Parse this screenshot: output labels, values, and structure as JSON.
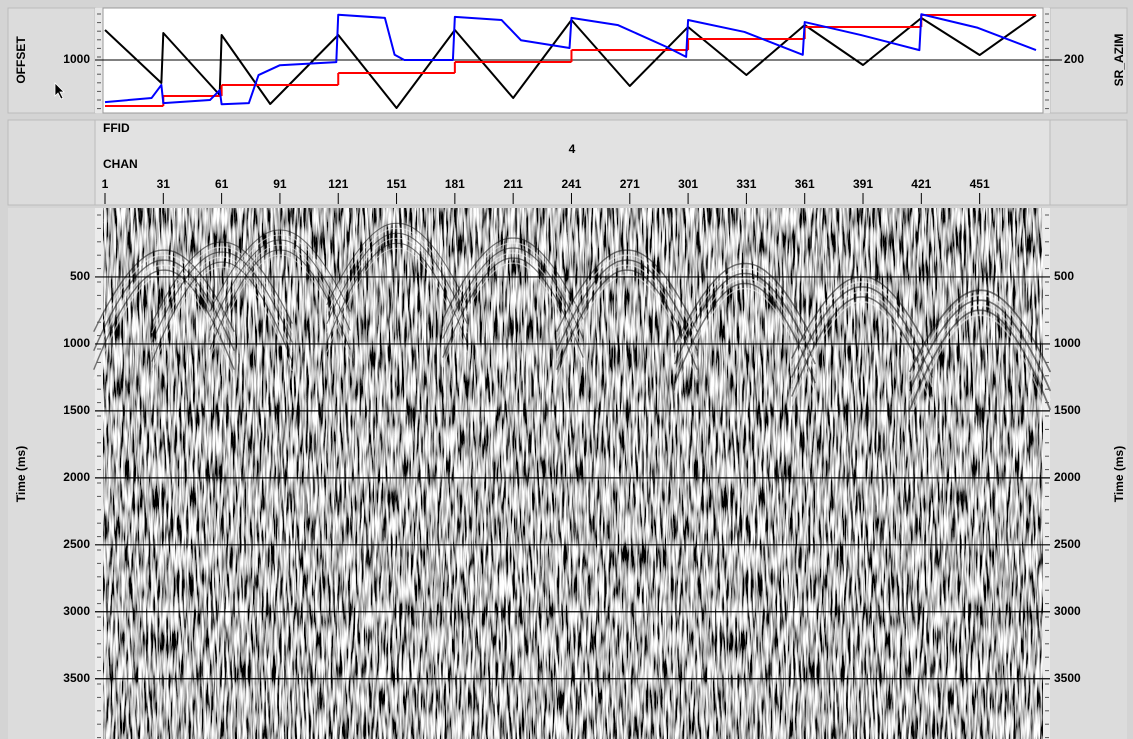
{
  "header_plot": {
    "left_axis": {
      "label": "OFFSET",
      "ylim": [
        0,
        2000
      ],
      "yticks": [
        1000
      ]
    },
    "right_axis": {
      "label": "SR_AZIM",
      "ylim": [
        100,
        300
      ],
      "yticks": [
        200
      ]
    },
    "series": [
      {
        "color": "#000000",
        "axis": "left",
        "x": [
          1,
          30,
          31,
          60,
          61,
          86,
          121,
          151,
          181,
          211,
          241,
          271,
          301,
          331,
          361,
          391,
          421,
          451,
          480
        ],
        "values": [
          1577,
          558,
          1519,
          327,
          1481,
          154,
          1481,
          77,
          1577,
          269,
          1769,
          500,
          1635,
          712,
          1673,
          904,
          1808,
          1096,
          1865
        ]
      },
      {
        "color": "#ff0000",
        "axis": "left",
        "step": true,
        "x": [
          1,
          31,
          61,
          121,
          181,
          241,
          301,
          361,
          421
        ],
        "values": [
          115,
          308,
          519,
          750,
          962,
          1192,
          1404,
          1635,
          1865
        ]
      },
      {
        "color": "#0000ff",
        "axis": "right",
        "x": [
          1,
          25,
          30,
          31,
          55,
          60,
          61,
          75,
          80,
          91,
          120,
          121,
          145,
          150,
          155,
          180,
          181,
          205,
          215,
          240,
          241,
          265,
          290,
          300,
          301,
          330,
          360,
          361,
          390,
          420,
          421,
          450,
          480
        ],
        "values": [
          119,
          127,
          152,
          117,
          123,
          142,
          115,
          117,
          171,
          190,
          196,
          287,
          281,
          210,
          200,
          200,
          283,
          277,
          238,
          223,
          281,
          267,
          225,
          206,
          277,
          254,
          210,
          273,
          248,
          219,
          288,
          262,
          219
        ]
      }
    ]
  },
  "trace_header": {
    "ffid_label": "FFID",
    "ffid_value": 4,
    "chan_label": "CHAN",
    "xlim": [
      1,
      480
    ],
    "chan_ticks": [
      1,
      31,
      61,
      91,
      121,
      151,
      181,
      211,
      241,
      271,
      301,
      331,
      361,
      391,
      421,
      451
    ]
  },
  "section": {
    "ylabel": "Time (ms)",
    "ylim": [
      0,
      3950
    ],
    "yticks": [
      500,
      1000,
      1500,
      2000,
      2500,
      3000,
      3500
    ],
    "grid": true
  }
}
